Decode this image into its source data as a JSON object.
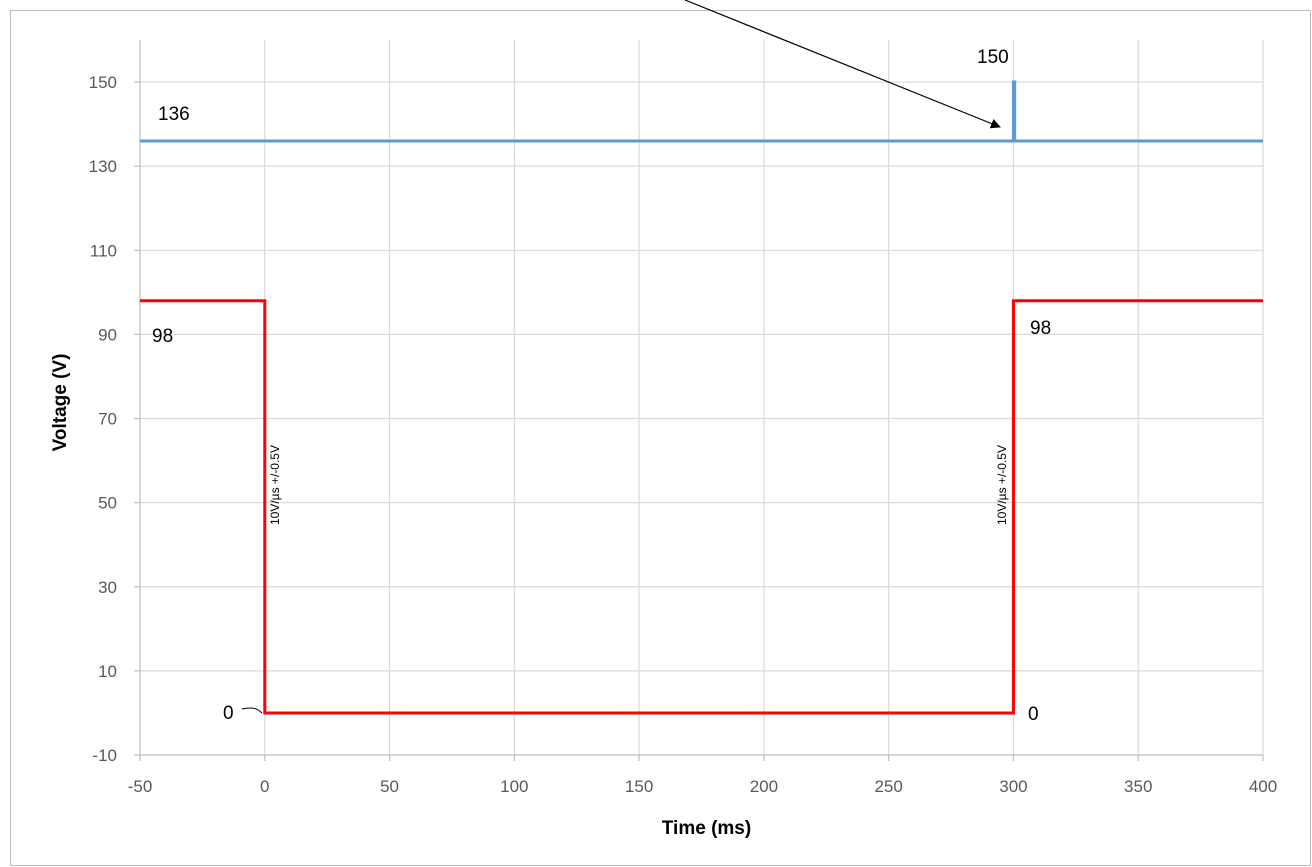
{
  "chart_data": {
    "type": "line",
    "title": "",
    "xlabel": "Time (ms)",
    "ylabel": "Voltage (V)",
    "xlim": [
      -50,
      400
    ],
    "ylim": [
      -10,
      160
    ],
    "x_ticks": [
      -50,
      0,
      50,
      100,
      150,
      200,
      250,
      300,
      350,
      400
    ],
    "y_ticks": [
      -10,
      10,
      30,
      50,
      70,
      90,
      110,
      130,
      150
    ],
    "x_tick_labels": [
      "-50",
      "0",
      "50",
      "100",
      "150",
      "200",
      "250",
      "300",
      "350",
      "400"
    ],
    "y_tick_labels": [
      "-10",
      "10",
      "30",
      "50",
      "70",
      "90",
      "110",
      "130",
      "150"
    ],
    "grid": true,
    "legend": "none",
    "series": [
      {
        "color": "#5b9bd5",
        "points": [
          [
            -50,
            136
          ],
          [
            300,
            136
          ],
          [
            300,
            150
          ],
          [
            300.5,
            150
          ],
          [
            300.5,
            136
          ],
          [
            400,
            136
          ]
        ]
      },
      {
        "color": "#ff0000",
        "points": [
          [
            -50,
            98
          ],
          [
            0,
            98
          ],
          [
            0,
            0
          ],
          [
            300,
            0
          ],
          [
            300,
            98
          ],
          [
            400,
            98
          ]
        ]
      }
    ],
    "annotations": {
      "label_136": "136",
      "label_150": "150",
      "label_98_left": "98",
      "label_98_right": "98",
      "label_0_left": "0",
      "label_0_right": "0",
      "slew_left": "10V/µs +/-0.5V",
      "slew_right": "10V/µs +/-0.5V"
    }
  }
}
